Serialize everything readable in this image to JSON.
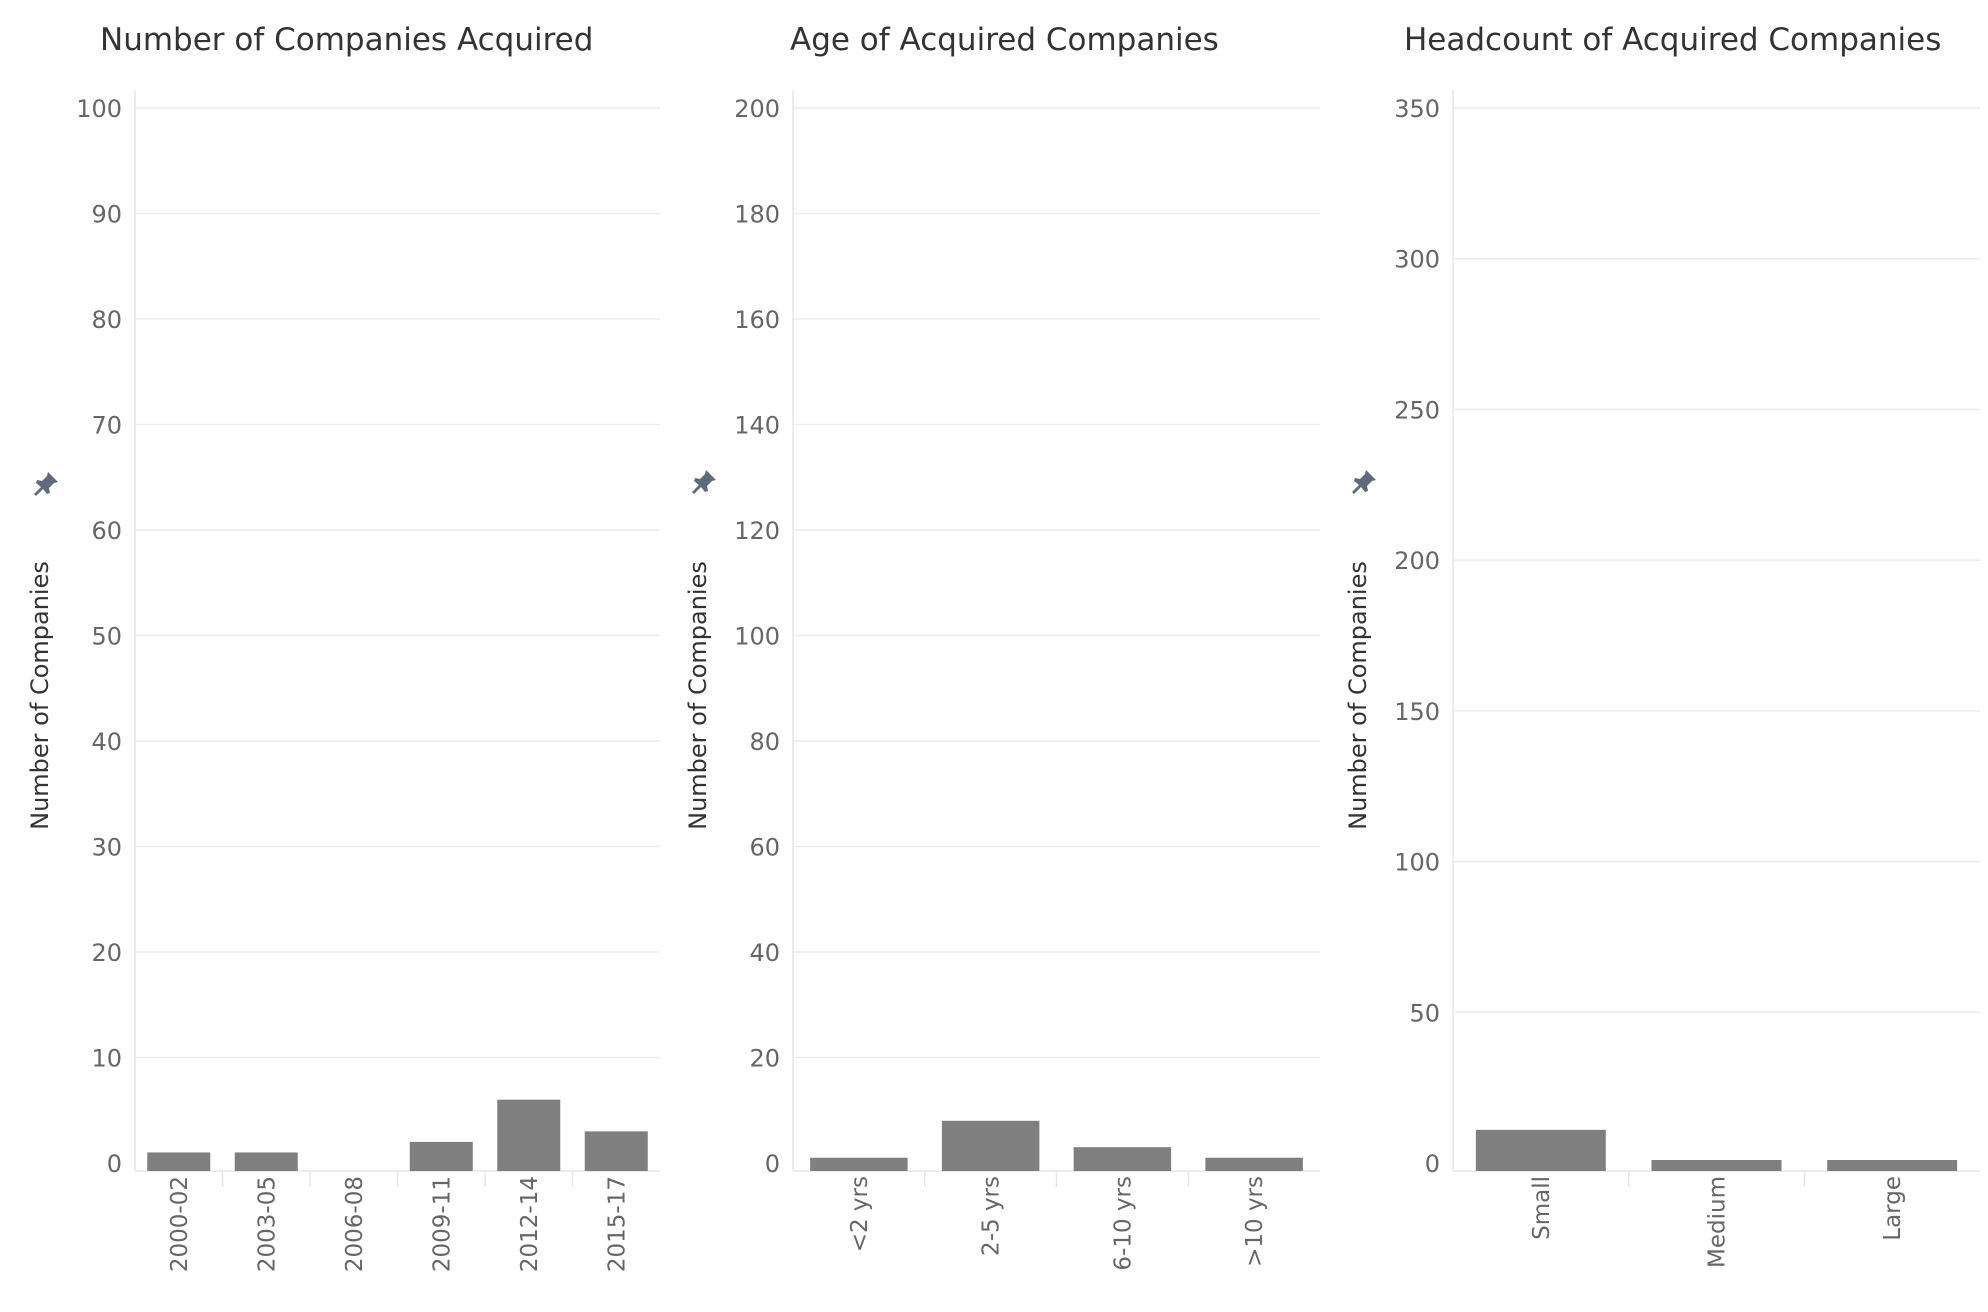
{
  "chart_data": [
    {
      "type": "bar",
      "title": "Number of Companies Acquired",
      "ylabel": "Number of Companies",
      "xlabel": "",
      "categories": [
        "2000-02",
        "2003-05",
        "2006-08",
        "2009-11",
        "2012-14",
        "2015-17"
      ],
      "values": [
        1,
        1,
        0,
        2,
        6,
        3
      ],
      "ylim": [
        0,
        100
      ],
      "yticks": [
        0,
        10,
        20,
        30,
        40,
        50,
        60,
        70,
        80,
        90,
        100
      ],
      "grid": true,
      "bar_color": "#7f7f7f"
    },
    {
      "type": "bar",
      "title": "Age of Acquired Companies",
      "ylabel": "Number of Companies",
      "xlabel": "",
      "categories": [
        "<2 yrs",
        "2-5 yrs",
        "6-10 yrs",
        ">10 yrs"
      ],
      "values": [
        1,
        8,
        3,
        1
      ],
      "ylim": [
        0,
        200
      ],
      "yticks": [
        0,
        20,
        40,
        60,
        80,
        100,
        120,
        140,
        160,
        180,
        200
      ],
      "grid": true,
      "bar_color": "#7f7f7f"
    },
    {
      "type": "bar",
      "title": "Headcount of Acquired Companies",
      "ylabel": "Number of Companies",
      "xlabel": "",
      "categories": [
        "Small",
        "Medium",
        "Large"
      ],
      "values": [
        11,
        1,
        1
      ],
      "ylim": [
        0,
        350
      ],
      "yticks": [
        0,
        50,
        100,
        150,
        200,
        250,
        300,
        350
      ],
      "grid": true,
      "bar_color": "#7f7f7f"
    }
  ],
  "pin_icon": "pin-icon",
  "colors": {
    "bar": "#7f7f7f",
    "grid": "#ececec",
    "axis_text": "#666666",
    "pin": "#5f6b7a"
  }
}
